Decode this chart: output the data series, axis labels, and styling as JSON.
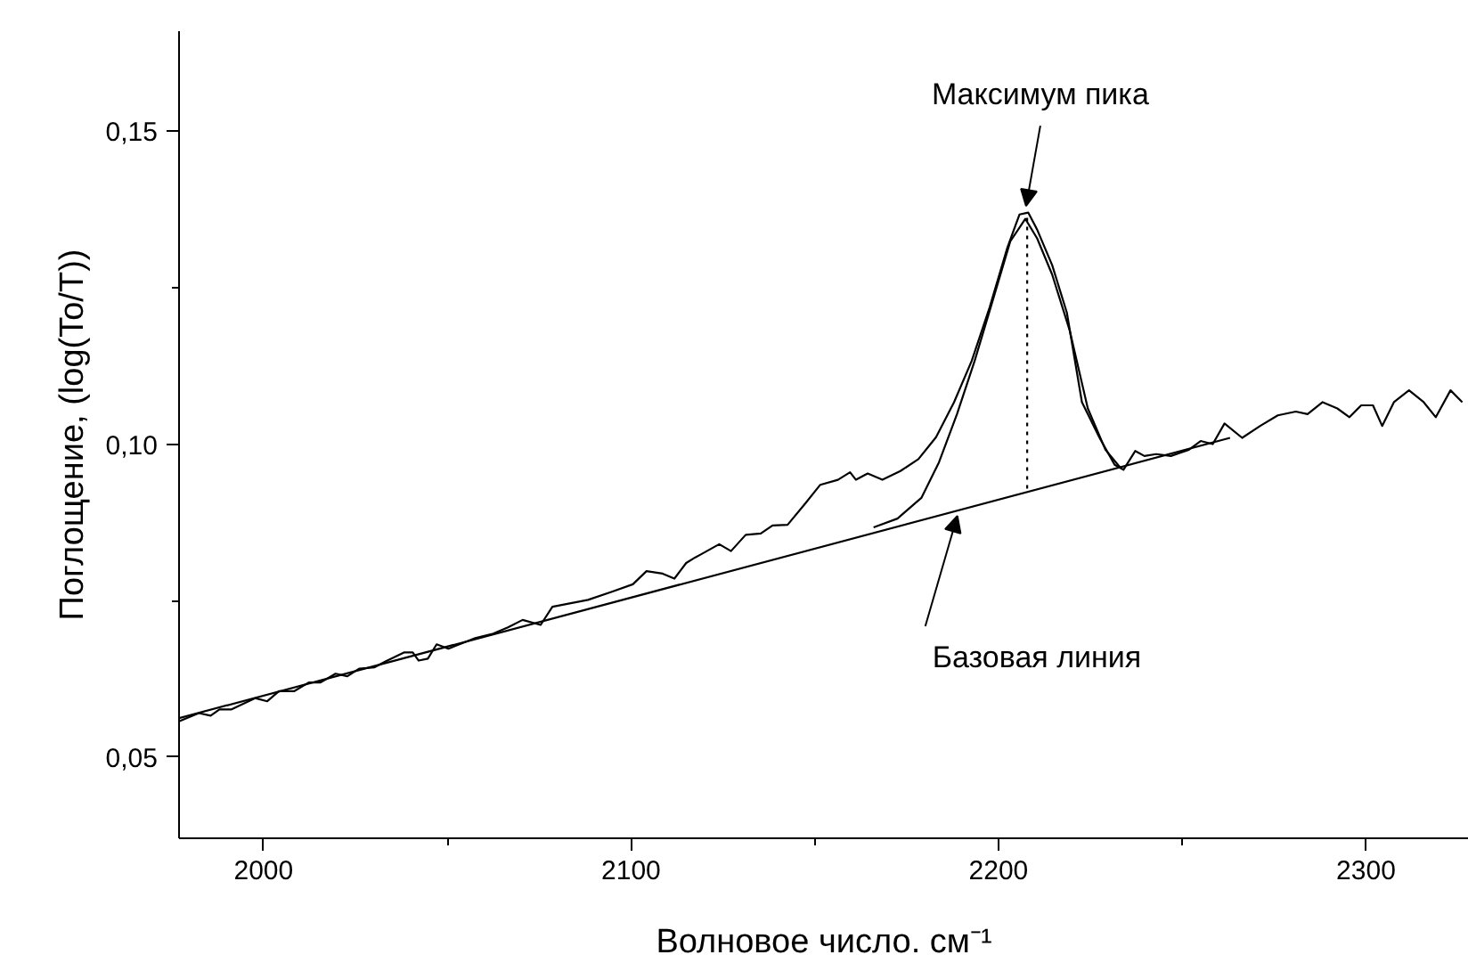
{
  "chart_data": {
    "type": "line",
    "xlabel": "Волновое число. см⁻¹",
    "ylabel": "Поглощение, (log(To/T))",
    "xlim": [
      1977,
      2328
    ],
    "ylim": [
      0.037,
      0.166
    ],
    "xticks": [
      2000,
      {
        "value": 2050,
        "label": null
      },
      2100,
      {
        "value": 2150,
        "label": null
      },
      2200,
      {
        "value": 2250,
        "label": null
      },
      2300
    ],
    "yticks": [
      {
        "value": 0.05,
        "label": "0,05"
      },
      {
        "value": 0.075,
        "label": null
      },
      {
        "value": 0.1,
        "label": "0,10"
      },
      {
        "value": 0.125,
        "label": null
      },
      {
        "value": 0.15,
        "label": "0,15"
      }
    ],
    "grid": false,
    "series": [
      {
        "color": "#000000",
        "x": [
          1977,
          1982.4,
          1985.6,
          1988,
          1991.3,
          1997.7,
          2001,
          2004.2,
          2008.3,
          2012.3,
          2015.5,
          2019.6,
          2022.8,
          2026,
          2030.1,
          2033.3,
          2038.2,
          2040.6,
          2042.2,
          2044.7,
          2047.1,
          2050.3,
          2057.6,
          2062.5,
          2066.5,
          2070.5,
          2075.4,
          2078.6,
          2088.3,
          2094.8,
          2100.5,
          2104.2,
          2108.6,
          2111.8,
          2115,
          2117.5,
          2119.1,
          2124,
          2127.2,
          2131.2,
          2135.3,
          2138.5,
          2142.6,
          2147.4,
          2151.5,
          2156.3,
          2159.6,
          2161.2,
          2164.4,
          2168.4,
          2173.3,
          2178.2,
          2183,
          2187.9,
          2192.7,
          2197.6,
          2202.4,
          2205.7,
          2208.1,
          2210.5,
          2214.6,
          2218.6,
          2222.7,
          2227.5,
          2231.6,
          2234,
          2237.2,
          2239.7,
          2242.9,
          2246.9,
          2251.8,
          2255,
          2258.3,
          2261.5,
          2266.3,
          2271.2,
          2276,
          2280.9,
          2284.1,
          2288.2,
          2292.2,
          2295.5,
          2298.7,
          2301.9,
          2304.4,
          2307.6,
          2311.7,
          2315.7,
          2319,
          2323,
          2326.2
        ],
        "values": [
          0.0557,
          0.057,
          0.0566,
          0.0576,
          0.0576,
          0.0594,
          0.0589,
          0.0605,
          0.0605,
          0.0619,
          0.0619,
          0.0633,
          0.0629,
          0.0641,
          0.0643,
          0.0653,
          0.0667,
          0.0667,
          0.0654,
          0.0657,
          0.068,
          0.0673,
          0.069,
          0.0697,
          0.0707,
          0.0719,
          0.0711,
          0.074,
          0.0751,
          0.0764,
          0.0776,
          0.0797,
          0.0793,
          0.0785,
          0.081,
          0.0819,
          0.0824,
          0.084,
          0.0829,
          0.0855,
          0.0857,
          0.087,
          0.0871,
          0.0905,
          0.0935,
          0.0943,
          0.0955,
          0.0943,
          0.0953,
          0.0943,
          0.0957,
          0.0976,
          0.1011,
          0.1067,
          0.1133,
          0.1219,
          0.1314,
          0.1367,
          0.137,
          0.1343,
          0.1286,
          0.121,
          0.1067,
          0.101,
          0.0967,
          0.0959,
          0.0989,
          0.0981,
          0.0984,
          0.0981,
          0.0991,
          0.1005,
          0.1,
          0.1033,
          0.101,
          0.1029,
          0.1046,
          0.1052,
          0.1048,
          0.1067,
          0.1057,
          0.1043,
          0.1062,
          0.1062,
          0.1029,
          0.1067,
          0.1086,
          0.1067,
          0.1043,
          0.1086,
          0.1067
        ]
      },
      {
        "color": "#000000",
        "x": [
          2166,
          2172.5,
          2179,
          2183.8,
          2188.7,
          2193.5,
          2198.4,
          2203.2,
          2207.3,
          2210.5,
          2214.6,
          2219.4,
          2224.3,
          2229.1,
          2233.2
        ],
        "values": [
          0.0867,
          0.0881,
          0.0914,
          0.0971,
          0.1048,
          0.1133,
          0.1229,
          0.1324,
          0.136,
          0.1329,
          0.1271,
          0.1181,
          0.1057,
          0.0991,
          0.0962
        ]
      },
      {
        "color": "#000000",
        "x": [
          1977,
          2263
        ],
        "values": [
          0.0562,
          0.101
        ]
      },
      {
        "color": "#000000",
        "line_style": "dotted",
        "x": [
          2207.8,
          2207.8
        ],
        "values": [
          0.0929,
          0.1362
        ]
      }
    ],
    "annotations": [
      {
        "text": "Максимум пика",
        "x": 2207.5,
        "y": 0.1375
      },
      {
        "text": "Базовая линия",
        "x": 2188.8,
        "y": 0.0891
      }
    ]
  }
}
